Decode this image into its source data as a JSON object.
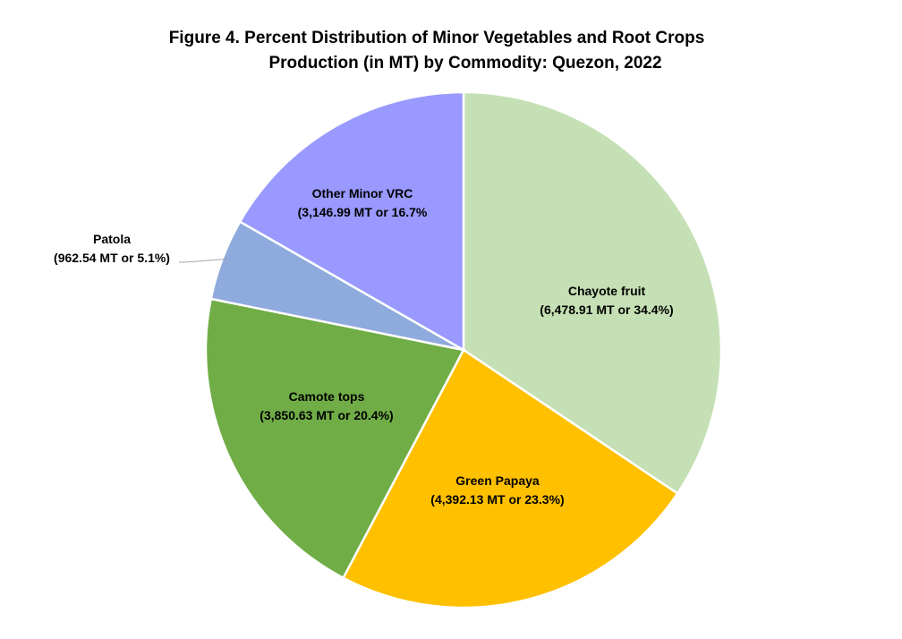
{
  "chart_data": {
    "type": "pie",
    "title_lines": [
      "Figure 4. Percent Distribution of Minor Vegetables and Root Crops",
      "Production (in MT) by Commodity: Quezon, 2022"
    ],
    "slices": [
      {
        "name": "Chayote fruit",
        "value": 6478.91,
        "label": "(6,478.91 MT or 34.4%)",
        "color": "#c5e0b4"
      },
      {
        "name": "Green Papaya",
        "value": 4392.13,
        "label": "(4,392.13 MT or 23.3%)",
        "color": "#ffc000"
      },
      {
        "name": "Camote tops",
        "value": 3850.63,
        "label": "(3,850.63 MT or 20.4%)",
        "color": "#70ad47"
      },
      {
        "name": "Patola",
        "value": 962.54,
        "label": "(962.54 MT or 5.1%)",
        "color": "#8faadc"
      },
      {
        "name": "Other Minor VRC",
        "value": 3146.99,
        "label": "(3,146.99 MT or 16.7%",
        "color": "#9999ff"
      }
    ]
  }
}
